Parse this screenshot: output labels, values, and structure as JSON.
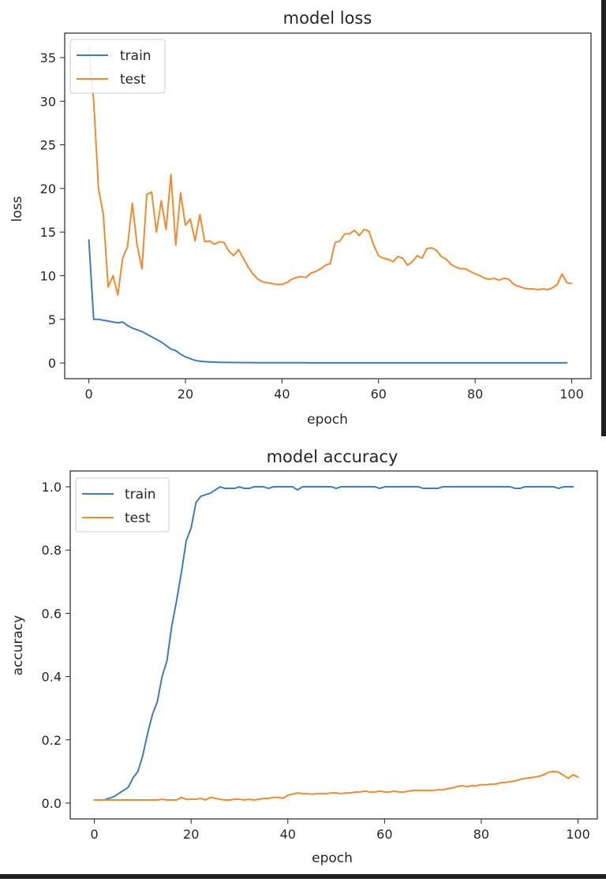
{
  "colors": {
    "train": "#3b7dc0",
    "test": "#f58a2a",
    "axis": "#262626",
    "background": "#ffffff"
  },
  "chart_data": [
    {
      "type": "line",
      "title": "model loss",
      "xlabel": "epoch",
      "ylabel": "loss",
      "xlim": [
        -5,
        104
      ],
      "ylim": [
        -1.8,
        37.8
      ],
      "xticks": [
        0,
        20,
        40,
        60,
        80,
        100
      ],
      "yticks": [
        0,
        5,
        10,
        15,
        20,
        25,
        30,
        35
      ],
      "grid": false,
      "legend": "upper-left",
      "series": [
        {
          "name": "train",
          "color": "#3b7dc0",
          "x_start": 0,
          "values": [
            14.1,
            5.0,
            5.0,
            4.9,
            4.8,
            4.7,
            4.6,
            4.7,
            4.3,
            4.0,
            3.8,
            3.6,
            3.3,
            3.0,
            2.7,
            2.4,
            2.0,
            1.6,
            1.4,
            1.0,
            0.7,
            0.5,
            0.3,
            0.2,
            0.15,
            0.12,
            0.1,
            0.08,
            0.07,
            0.06,
            0.05,
            0.05,
            0.04,
            0.04,
            0.04,
            0.03,
            0.03,
            0.03,
            0.03,
            0.03,
            0.03,
            0.03,
            0.03,
            0.03,
            0.03,
            0.03,
            0.02,
            0.02,
            0.02,
            0.02,
            0.02,
            0.02,
            0.02,
            0.02,
            0.02,
            0.02,
            0.02,
            0.02,
            0.02,
            0.02,
            0.02,
            0.02,
            0.02,
            0.02,
            0.02,
            0.02,
            0.02,
            0.02,
            0.02,
            0.02,
            0.02,
            0.02,
            0.02,
            0.02,
            0.02,
            0.02,
            0.02,
            0.02,
            0.02,
            0.02,
            0.02,
            0.02,
            0.02,
            0.02,
            0.02,
            0.02,
            0.02,
            0.02,
            0.02,
            0.02,
            0.02,
            0.02,
            0.02,
            0.02,
            0.02,
            0.02,
            0.02,
            0.02,
            0.02,
            0.02
          ]
        },
        {
          "name": "test",
          "color": "#f58a2a",
          "x_start": 0,
          "values": [
            36.2,
            30.0,
            20.0,
            17.0,
            8.7,
            10.0,
            7.8,
            12.0,
            13.3,
            18.3,
            13.5,
            10.8,
            19.3,
            19.6,
            15.0,
            18.6,
            15.3,
            21.6,
            13.5,
            19.5,
            15.8,
            16.5,
            14.0,
            17.0,
            13.9,
            14.0,
            13.6,
            13.9,
            13.8,
            12.8,
            12.3,
            13.0,
            12.0,
            11.0,
            10.2,
            9.6,
            9.3,
            9.2,
            9.1,
            9.0,
            9.0,
            9.2,
            9.6,
            9.8,
            9.9,
            9.8,
            10.3,
            10.5,
            10.8,
            11.2,
            11.4,
            13.8,
            14.0,
            14.8,
            14.8,
            15.2,
            14.6,
            15.3,
            15.1,
            13.5,
            12.3,
            12.0,
            11.9,
            11.6,
            12.2,
            12.0,
            11.2,
            11.6,
            12.3,
            12.0,
            13.1,
            13.2,
            12.9,
            12.2,
            11.9,
            11.3,
            11.0,
            10.8,
            10.8,
            10.5,
            10.2,
            10.0,
            9.7,
            9.6,
            9.7,
            9.5,
            9.7,
            9.6,
            9.0,
            8.8,
            8.6,
            8.5,
            8.5,
            8.4,
            8.5,
            8.4,
            8.6,
            9.0,
            10.2,
            9.2,
            9.1
          ]
        }
      ]
    },
    {
      "type": "line",
      "title": "model accuracy",
      "xlabel": "epoch",
      "ylabel": "accuracy",
      "xlim": [
        -5,
        104
      ],
      "ylim": [
        -0.05,
        1.05
      ],
      "xticks": [
        0,
        20,
        40,
        60,
        80,
        100
      ],
      "yticks": [
        0.0,
        0.2,
        0.4,
        0.6,
        0.8,
        1.0
      ],
      "ytick_labels": [
        "0.0",
        "0.2",
        "0.4",
        "0.6",
        "0.8",
        "1.0"
      ],
      "grid": false,
      "legend": "upper-left",
      "series": [
        {
          "name": "train",
          "color": "#3b7dc0",
          "x_start": 0,
          "values": [
            0.01,
            0.01,
            0.01,
            0.015,
            0.02,
            0.03,
            0.04,
            0.05,
            0.08,
            0.1,
            0.15,
            0.22,
            0.28,
            0.32,
            0.4,
            0.45,
            0.56,
            0.64,
            0.73,
            0.83,
            0.87,
            0.95,
            0.97,
            0.975,
            0.98,
            0.99,
            1.0,
            0.995,
            0.995,
            0.995,
            1.0,
            0.995,
            0.995,
            1.0,
            1.0,
            1.0,
            0.995,
            1.0,
            1.0,
            1.0,
            1.0,
            1.0,
            0.99,
            1.0,
            1.0,
            1.0,
            1.0,
            1.0,
            1.0,
            1.0,
            0.995,
            1.0,
            1.0,
            1.0,
            1.0,
            1.0,
            1.0,
            1.0,
            1.0,
            0.995,
            1.0,
            1.0,
            1.0,
            1.0,
            1.0,
            1.0,
            1.0,
            1.0,
            0.995,
            0.995,
            0.995,
            0.995,
            1.0,
            1.0,
            1.0,
            1.0,
            1.0,
            1.0,
            1.0,
            1.0,
            1.0,
            1.0,
            1.0,
            1.0,
            1.0,
            1.0,
            1.0,
            0.995,
            0.995,
            1.0,
            1.0,
            1.0,
            1.0,
            1.0,
            1.0,
            1.0,
            0.995,
            1.0,
            1.0,
            1.0
          ]
        },
        {
          "name": "test",
          "color": "#f58a2a",
          "x_start": 0,
          "values": [
            0.01,
            0.01,
            0.01,
            0.01,
            0.01,
            0.01,
            0.01,
            0.01,
            0.01,
            0.01,
            0.01,
            0.01,
            0.01,
            0.01,
            0.012,
            0.01,
            0.01,
            0.01,
            0.018,
            0.012,
            0.012,
            0.012,
            0.015,
            0.01,
            0.018,
            0.015,
            0.012,
            0.01,
            0.01,
            0.012,
            0.012,
            0.01,
            0.012,
            0.01,
            0.012,
            0.015,
            0.015,
            0.018,
            0.018,
            0.015,
            0.025,
            0.028,
            0.032,
            0.03,
            0.03,
            0.028,
            0.03,
            0.03,
            0.03,
            0.032,
            0.032,
            0.03,
            0.032,
            0.032,
            0.035,
            0.035,
            0.038,
            0.035,
            0.035,
            0.038,
            0.035,
            0.035,
            0.038,
            0.035,
            0.035,
            0.038,
            0.04,
            0.04,
            0.04,
            0.04,
            0.04,
            0.042,
            0.042,
            0.045,
            0.048,
            0.052,
            0.055,
            0.052,
            0.055,
            0.055,
            0.058,
            0.058,
            0.06,
            0.06,
            0.065,
            0.065,
            0.068,
            0.07,
            0.075,
            0.078,
            0.08,
            0.082,
            0.085,
            0.09,
            0.098,
            0.1,
            0.098,
            0.088,
            0.078,
            0.09,
            0.082
          ]
        }
      ]
    }
  ]
}
